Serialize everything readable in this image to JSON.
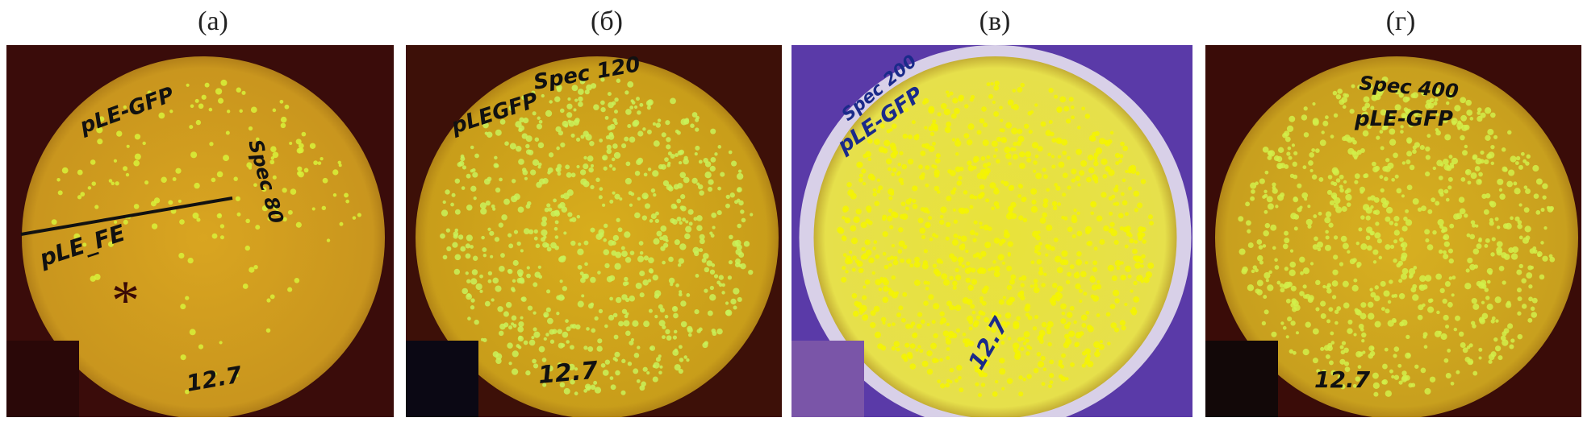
{
  "panels": [
    {
      "label": "(а)",
      "bg": "#3a0c0a",
      "plate": "#d9a520",
      "colony": "#d8f23a",
      "ink": "#111111",
      "corner": "#2a0808",
      "handwriting": [
        "pLE-GFP",
        "Spec 80",
        "pLE_FE",
        "12.7"
      ],
      "marker": "*",
      "colony_density": 0.35
    },
    {
      "label": "(б)",
      "bg": "#3d1008",
      "plate": "#d8ad1c",
      "colony": "#c9f25a",
      "ink": "#111111",
      "corner": "#0b0814",
      "handwriting": [
        "Spec 120",
        "pLEGFP",
        "12.7"
      ],
      "colony_density": 0.8
    },
    {
      "label": "(в)",
      "bg": "#5a3aa8",
      "plate": "#e8e23a",
      "colony": "#f5f500",
      "ink": "#1a2a8a",
      "corner": "#7a55a8",
      "handwriting": [
        "Spec 200",
        "pLE-GFP",
        "12.7"
      ],
      "colony_density": 1.0
    },
    {
      "label": "(г)",
      "bg": "#3a0c08",
      "plate": "#d8b020",
      "colony": "#d2f04a",
      "ink": "#111111",
      "corner": "#120808",
      "handwriting": [
        "Spec 400",
        "pLE-GFP",
        "12.7"
      ],
      "colony_density": 0.85
    }
  ]
}
